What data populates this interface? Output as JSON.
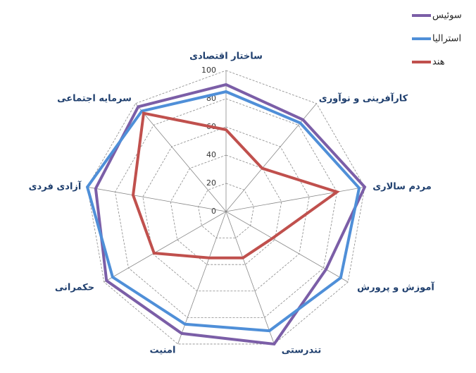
{
  "chart_data": {
    "type": "radar",
    "categories": [
      "ساختار اقتصادی",
      "کارآفرینی و نوآوری",
      "مردم سالاری",
      "آموزش و پرورش",
      "تندرستی",
      "امنیت",
      "حکمرانی",
      "آزادی فردی",
      "سرمایه اجتماعی"
    ],
    "series": [
      {
        "name": "سوئیس",
        "color": "#7b5ea7",
        "values": [
          90,
          85,
          100,
          82,
          100,
          92,
          98,
          94,
          97
        ]
      },
      {
        "name": "استرالیا",
        "color": "#4f8fd8",
        "values": [
          85,
          82,
          96,
          94,
          90,
          85,
          93,
          100,
          93
        ]
      },
      {
        "name": "هند",
        "color": "#c0504d",
        "values": [
          58,
          40,
          80,
          38,
          35,
          35,
          59,
          67,
          91
        ]
      }
    ],
    "ylim": [
      0,
      100
    ],
    "yticks": [
      0,
      20,
      40,
      60,
      80,
      100
    ],
    "grid": true,
    "legend": "top-right"
  }
}
